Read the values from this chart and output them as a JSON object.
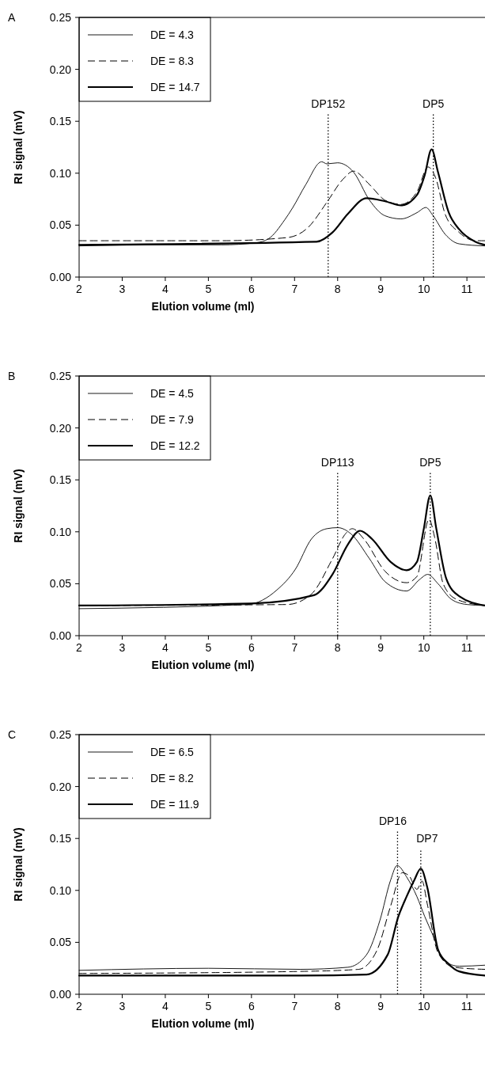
{
  "chart_data": [
    {
      "type": "line",
      "title": "A",
      "xlabel": "Elution volume (ml)",
      "ylabel": "RI signal (mV)",
      "xlim": [
        2,
        11.42
      ],
      "ylim": [
        0,
        0.25
      ],
      "xticks": [
        2,
        3,
        4,
        5,
        6,
        7,
        8,
        9,
        10,
        11
      ],
      "yticks": [
        {
          "value": 0,
          "label": "0.00"
        },
        {
          "value": 0.05,
          "label": "0.05"
        },
        {
          "value": 0.1,
          "label": "0.10"
        },
        {
          "value": 0.15,
          "label": "0.15"
        },
        {
          "value": 0.2,
          "label": "0.20"
        },
        {
          "value": 0.25,
          "label": "0.25"
        }
      ],
      "legend": "top left",
      "grid": false,
      "ref_lines": [
        {
          "axis": "x",
          "value": 7.78,
          "label": "DP152",
          "line_style": "dotted"
        },
        {
          "axis": "x",
          "value": 10.22,
          "label": "DP5",
          "line_style": "dotted"
        }
      ],
      "series": [
        {
          "name": "DE = 4.3",
          "color": "#000000",
          "line_style": "solid",
          "x": [
            2,
            4,
            5.3,
            6.1,
            6.4,
            6.77,
            6.96,
            7.26,
            7.63,
            7.75,
            8.0,
            8.37,
            8.74,
            9.1,
            9.47,
            9.84,
            10.05,
            10.2,
            10.5,
            10.82,
            11.42
          ],
          "values": [
            0.03,
            0.031,
            0.031,
            0.033,
            0.037,
            0.055,
            0.067,
            0.089,
            0.111,
            0.109,
            0.11,
            0.101,
            0.074,
            0.059,
            0.056,
            0.062,
            0.067,
            0.06,
            0.041,
            0.032,
            0.03
          ]
        },
        {
          "name": "DE = 8.3",
          "color": "#000000",
          "line_style": "dashed",
          "x": [
            2,
            5.3,
            6.83,
            7.32,
            7.75,
            8.12,
            8.37,
            8.74,
            9.1,
            9.47,
            9.84,
            10.1,
            10.27,
            10.5,
            10.82,
            11.2,
            11.42
          ],
          "values": [
            0.035,
            0.035,
            0.038,
            0.048,
            0.072,
            0.094,
            0.102,
            0.089,
            0.074,
            0.07,
            0.082,
            0.106,
            0.096,
            0.06,
            0.043,
            0.035,
            0.035
          ]
        },
        {
          "name": "DE = 14.7",
          "color": "#000000",
          "line_style": "solid",
          "x": [
            2,
            7.51,
            7.88,
            8.24,
            8.67,
            9.1,
            9.47,
            9.84,
            10.02,
            10.18,
            10.33,
            10.58,
            10.82,
            11.2,
            11.42
          ],
          "values": [
            0.031,
            0.034,
            0.043,
            0.061,
            0.076,
            0.073,
            0.069,
            0.079,
            0.098,
            0.123,
            0.101,
            0.062,
            0.046,
            0.034,
            0.031
          ]
        }
      ]
    },
    {
      "type": "line",
      "title": "B",
      "xlabel": "Elution volume (ml)",
      "ylabel": "RI signal (mV)",
      "xlim": [
        2,
        11.42
      ],
      "ylim": [
        0,
        0.25
      ],
      "xticks": [
        2,
        3,
        4,
        5,
        6,
        7,
        8,
        9,
        10,
        11
      ],
      "yticks": [
        {
          "value": 0,
          "label": "0.00"
        },
        {
          "value": 0.05,
          "label": "0.05"
        },
        {
          "value": 0.1,
          "label": "0.10"
        },
        {
          "value": 0.15,
          "label": "0.15"
        },
        {
          "value": 0.2,
          "label": "0.20"
        },
        {
          "value": 0.25,
          "label": "0.25"
        }
      ],
      "legend": "top left",
      "grid": false,
      "ref_lines": [
        {
          "axis": "x",
          "value": 8.0,
          "label": "DP113",
          "line_style": "dotted"
        },
        {
          "axis": "x",
          "value": 10.15,
          "label": "DP5",
          "line_style": "dotted"
        }
      ],
      "series": [
        {
          "name": "DE = 4.5",
          "color": "#000000",
          "line_style": "solid",
          "x": [
            2,
            5.91,
            6.59,
            7.02,
            7.39,
            7.75,
            8.0,
            8.31,
            8.74,
            9.1,
            9.6,
            9.9,
            10.09,
            10.33,
            10.64,
            11.0,
            11.42
          ],
          "values": [
            0.026,
            0.03,
            0.044,
            0.064,
            0.093,
            0.103,
            0.104,
            0.098,
            0.074,
            0.052,
            0.043,
            0.054,
            0.059,
            0.05,
            0.035,
            0.03,
            0.029
          ]
        },
        {
          "name": "DE = 7.9",
          "color": "#000000",
          "line_style": "dashed",
          "x": [
            2,
            6.83,
            7.39,
            7.88,
            8.18,
            8.34,
            8.61,
            9.1,
            9.6,
            9.84,
            10.12,
            10.25,
            10.45,
            10.76,
            11.42
          ],
          "values": [
            0.029,
            0.03,
            0.04,
            0.074,
            0.098,
            0.103,
            0.093,
            0.062,
            0.051,
            0.057,
            0.112,
            0.095,
            0.05,
            0.035,
            0.029
          ]
        },
        {
          "name": "DE = 12.2",
          "color": "#000000",
          "line_style": "solid",
          "x": [
            2,
            6,
            7.45,
            7.88,
            8.24,
            8.52,
            8.8,
            9.23,
            9.6,
            9.84,
            10.0,
            10.15,
            10.29,
            10.52,
            10.82,
            11.42
          ],
          "values": [
            0.029,
            0.031,
            0.039,
            0.059,
            0.088,
            0.101,
            0.093,
            0.071,
            0.063,
            0.071,
            0.103,
            0.135,
            0.103,
            0.055,
            0.038,
            0.029
          ]
        }
      ]
    },
    {
      "type": "line",
      "title": "C",
      "xlabel": "Elution volume (ml)",
      "ylabel": "RI signal (mV)",
      "xlim": [
        2,
        11.42
      ],
      "ylim": [
        0,
        0.25
      ],
      "xticks": [
        2,
        3,
        4,
        5,
        6,
        7,
        8,
        9,
        10,
        11
      ],
      "yticks": [
        {
          "value": 0,
          "label": "0.00"
        },
        {
          "value": 0.05,
          "label": "0.05"
        },
        {
          "value": 0.1,
          "label": "0.10"
        },
        {
          "value": 0.15,
          "label": "0.15"
        },
        {
          "value": 0.2,
          "label": "0.20"
        },
        {
          "value": 0.25,
          "label": "0.25"
        }
      ],
      "legend": "top left",
      "grid": false,
      "ref_lines": [
        {
          "axis": "x",
          "value": 9.39,
          "label": "DP16",
          "line_style": "dotted"
        },
        {
          "axis": "x",
          "value": 9.93,
          "label": "DP7",
          "line_style": "dotted"
        }
      ],
      "series": [
        {
          "name": "DE = 6.5",
          "color": "#000000",
          "line_style": "solid",
          "x": [
            2,
            5,
            7.14,
            8.24,
            8.67,
            8.98,
            9.23,
            9.38,
            9.6,
            9.84,
            10.02,
            10.21,
            10.45,
            10.82,
            11.42
          ],
          "values": [
            0.023,
            0.025,
            0.024,
            0.026,
            0.038,
            0.071,
            0.11,
            0.124,
            0.113,
            0.094,
            0.075,
            0.057,
            0.033,
            0.027,
            0.028
          ]
        },
        {
          "name": "DE = 8.2",
          "color": "#000000",
          "line_style": "dashed",
          "x": [
            2,
            7.14,
            8.49,
            8.92,
            9.23,
            9.5,
            9.66,
            9.84,
            9.96,
            10.08,
            10.33,
            10.7,
            11.42
          ],
          "values": [
            0.02,
            0.022,
            0.024,
            0.043,
            0.085,
            0.117,
            0.114,
            0.101,
            0.109,
            0.087,
            0.04,
            0.026,
            0.024
          ]
        },
        {
          "name": "DE = 11.9",
          "color": "#000000",
          "line_style": "solid",
          "x": [
            2,
            7.14,
            8.67,
            9.16,
            9.41,
            9.6,
            9.78,
            9.93,
            10.08,
            10.33,
            10.58,
            10.82,
            11.42
          ],
          "values": [
            0.018,
            0.018,
            0.019,
            0.038,
            0.075,
            0.094,
            0.11,
            0.121,
            0.103,
            0.043,
            0.029,
            0.022,
            0.018
          ]
        }
      ]
    }
  ]
}
